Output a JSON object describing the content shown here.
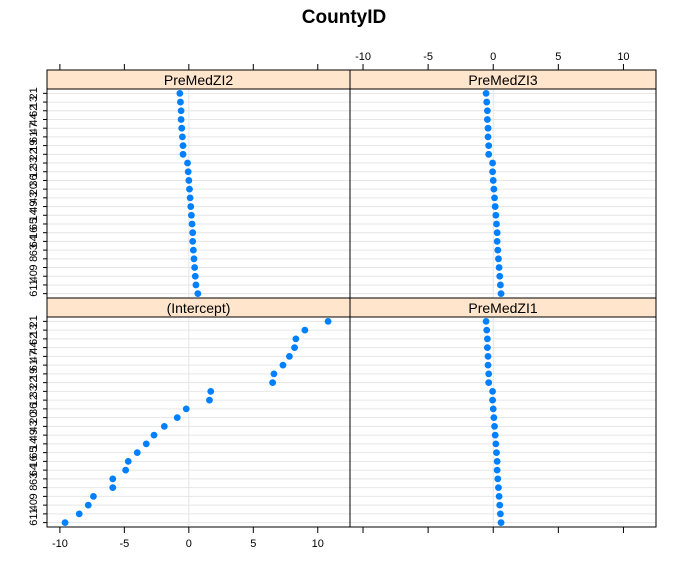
{
  "chart_data": {
    "type": "scatter",
    "title": "CountyID",
    "categories_top_to_bottom": [
      "21",
      "13",
      "62",
      "44",
      "47",
      "61",
      "19",
      "22",
      "33",
      "12",
      "36",
      "20",
      "43",
      "49",
      "14",
      "65",
      "16",
      "64",
      "63",
      "8",
      "9",
      "40",
      "11",
      "6"
    ],
    "x_ticks": [
      -10,
      -5,
      0,
      5,
      10
    ],
    "x_tick_labels": [
      "-10",
      "-5",
      "0",
      "5",
      "10"
    ],
    "xlim": [
      -11.0,
      12.5
    ],
    "grid": true,
    "point_color": "#0080ff",
    "strip_color": "#ffe5cc",
    "panels": [
      {
        "label": "(Intercept)",
        "row": "bottom",
        "col": "left",
        "values": [
          10.8,
          9.0,
          8.3,
          8.2,
          7.8,
          7.3,
          6.6,
          6.5,
          1.7,
          1.6,
          -0.2,
          -0.9,
          -1.9,
          -2.7,
          -3.3,
          -4.0,
          -4.7,
          -4.9,
          -5.9,
          -5.9,
          -7.4,
          -7.8,
          -8.5,
          -9.6
        ]
      },
      {
        "label": "PreMedZI1",
        "row": "bottom",
        "col": "right",
        "values": [
          -0.55,
          -0.5,
          -0.45,
          -0.45,
          -0.4,
          -0.4,
          -0.35,
          -0.35,
          -0.05,
          -0.05,
          0.0,
          0.05,
          0.1,
          0.15,
          0.2,
          0.25,
          0.3,
          0.3,
          0.35,
          0.4,
          0.45,
          0.5,
          0.55,
          0.6
        ]
      },
      {
        "label": "PreMedZI2",
        "row": "top",
        "col": "left",
        "values": [
          -0.7,
          -0.65,
          -0.6,
          -0.6,
          -0.55,
          -0.5,
          -0.45,
          -0.45,
          -0.1,
          -0.05,
          0.0,
          0.05,
          0.1,
          0.15,
          0.2,
          0.25,
          0.3,
          0.3,
          0.35,
          0.4,
          0.45,
          0.5,
          0.55,
          0.7
        ]
      },
      {
        "label": "PreMedZI3",
        "row": "top",
        "col": "right",
        "values": [
          -0.55,
          -0.5,
          -0.45,
          -0.45,
          -0.4,
          -0.4,
          -0.35,
          -0.35,
          -0.05,
          -0.05,
          0.0,
          0.05,
          0.1,
          0.15,
          0.2,
          0.25,
          0.3,
          0.3,
          0.35,
          0.4,
          0.45,
          0.5,
          0.55,
          0.6
        ]
      }
    ]
  }
}
